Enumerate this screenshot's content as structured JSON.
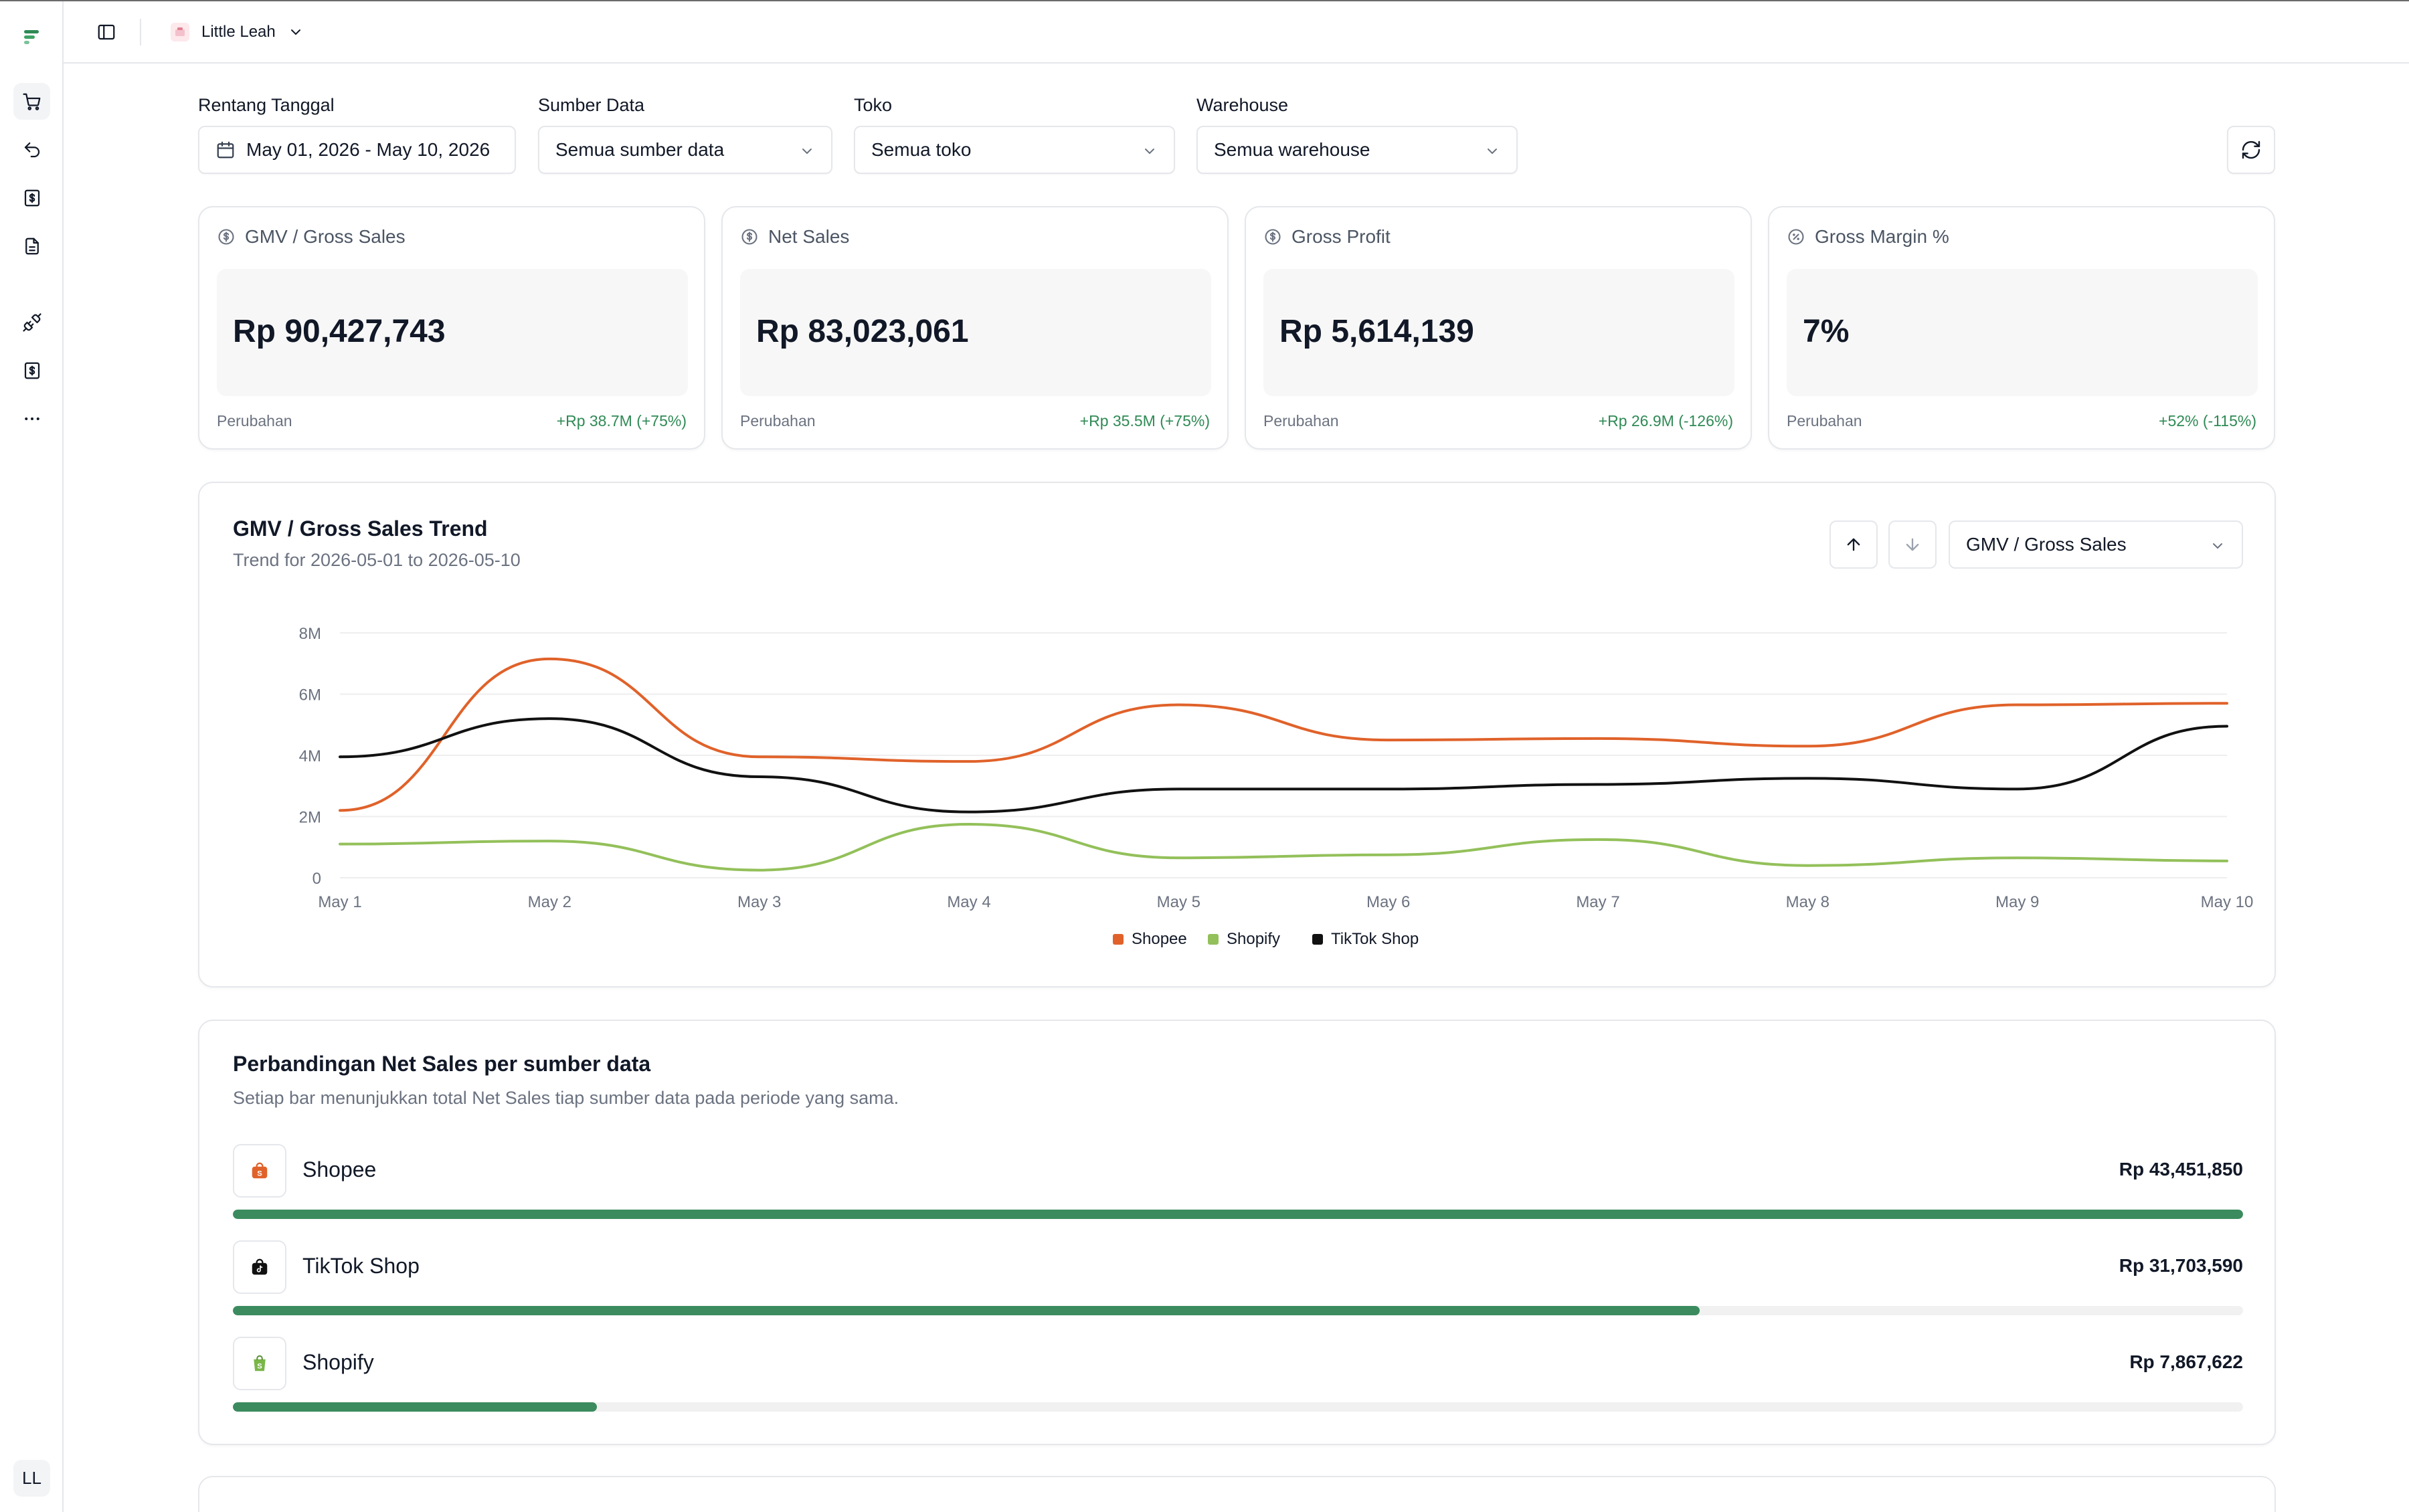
{
  "header": {
    "workspace_name": "Little Leah"
  },
  "sidebar": {
    "avatar_initials": "LL",
    "icons": [
      "cart-icon",
      "return-icon",
      "dollar-doc-icon",
      "document-icon",
      "plug-icon",
      "dollar-doc-icon",
      "more-icon"
    ]
  },
  "filters": {
    "date_range": {
      "label": "Rentang Tanggal",
      "value": "May 01, 2026 - May 10, 2026"
    },
    "data_source": {
      "label": "Sumber Data",
      "value": "Semua sumber data"
    },
    "store": {
      "label": "Toko",
      "value": "Semua toko"
    },
    "warehouse": {
      "label": "Warehouse",
      "value": "Semua warehouse"
    }
  },
  "kpis": [
    {
      "title": "GMV / Gross Sales",
      "value": "Rp 90,427,743",
      "change_label": "Perubahan",
      "change": "+Rp 38.7M (+75%)"
    },
    {
      "title": "Net Sales",
      "value": "Rp 83,023,061",
      "change_label": "Perubahan",
      "change": "+Rp 35.5M (+75%)"
    },
    {
      "title": "Gross Profit",
      "value": "Rp 5,614,139",
      "change_label": "Perubahan",
      "change": "+Rp 26.9M (-126%)"
    },
    {
      "title": "Gross Margin %",
      "value": "7%",
      "change_label": "Perubahan",
      "change": "+52% (-115%)"
    }
  ],
  "trend": {
    "title": "GMV / Gross Sales Trend",
    "subtitle": "Trend for 2026-05-01 to 2026-05-10",
    "metric_select": "GMV / Gross Sales"
  },
  "chart_data": {
    "type": "line",
    "x": [
      "May 1",
      "May 2",
      "May 3",
      "May 4",
      "May 5",
      "May 6",
      "May 7",
      "May 8",
      "May 9",
      "May 10"
    ],
    "y_ticks": [
      "0",
      "2M",
      "4M",
      "6M",
      "8M"
    ],
    "ylim": [
      0,
      8000000
    ],
    "grid": true,
    "legend_position": "bottom-center",
    "series": [
      {
        "name": "Shopee",
        "color": "#e0622a",
        "values": [
          2200000,
          7150000,
          3950000,
          3800000,
          5650000,
          4500000,
          4550000,
          4300000,
          5650000,
          5700000
        ]
      },
      {
        "name": "Shopify",
        "color": "#93c05a",
        "values": [
          1100000,
          1200000,
          250000,
          1750000,
          650000,
          750000,
          1250000,
          400000,
          650000,
          550000
        ]
      },
      {
        "name": "TikTok Shop",
        "color": "#111111",
        "values": [
          3950000,
          5200000,
          3300000,
          2150000,
          2900000,
          2900000,
          3050000,
          3250000,
          2900000,
          4950000
        ]
      }
    ]
  },
  "comparison": {
    "title": "Perbandingan Net Sales per sumber data",
    "subtitle": "Setiap bar menunjukkan total Net Sales tiap sumber data pada periode yang sama.",
    "rows": [
      {
        "name": "Shopee",
        "value": "Rp 43,451,850",
        "fraction": 1.0,
        "icon": "shopee-icon"
      },
      {
        "name": "TikTok Shop",
        "value": "Rp 31,703,590",
        "fraction": 0.7296,
        "icon": "tiktok-icon"
      },
      {
        "name": "Shopify",
        "value": "Rp 7,867,622",
        "fraction": 0.1811,
        "icon": "shopify-icon"
      }
    ]
  }
}
